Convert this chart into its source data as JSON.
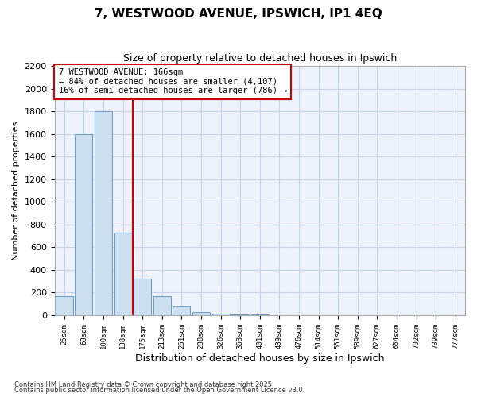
{
  "title1": "7, WESTWOOD AVENUE, IPSWICH, IP1 4EQ",
  "title2": "Size of property relative to detached houses in Ipswich",
  "xlabel": "Distribution of detached houses by size in Ipswich",
  "ylabel": "Number of detached properties",
  "bar_labels": [
    "25sqm",
    "63sqm",
    "100sqm",
    "138sqm",
    "175sqm",
    "213sqm",
    "251sqm",
    "288sqm",
    "326sqm",
    "363sqm",
    "401sqm",
    "439sqm",
    "476sqm",
    "514sqm",
    "551sqm",
    "589sqm",
    "627sqm",
    "664sqm",
    "702sqm",
    "739sqm",
    "777sqm"
  ],
  "bar_values": [
    170,
    1600,
    1800,
    730,
    320,
    170,
    75,
    30,
    15,
    5,
    5,
    0,
    0,
    0,
    0,
    0,
    0,
    0,
    0,
    0,
    0
  ],
  "bar_color": "#cce0f0",
  "bar_edge_color": "#6699cc",
  "vline_x": 3.5,
  "vline_color": "#cc0000",
  "ylim": [
    0,
    2200
  ],
  "yticks": [
    0,
    200,
    400,
    600,
    800,
    1000,
    1200,
    1400,
    1600,
    1800,
    2000,
    2200
  ],
  "annotation_line1": "7 WESTWOOD AVENUE: 166sqm",
  "annotation_line2": "← 84% of detached houses are smaller (4,107)",
  "annotation_line3": "16% of semi-detached houses are larger (786) →",
  "footer1": "Contains HM Land Registry data © Crown copyright and database right 2025.",
  "footer2": "Contains public sector information licensed under the Open Government Licence v3.0.",
  "grid_color": "#c8d4e8",
  "background_color": "#ffffff",
  "plot_bg_color": "#eef2fa"
}
